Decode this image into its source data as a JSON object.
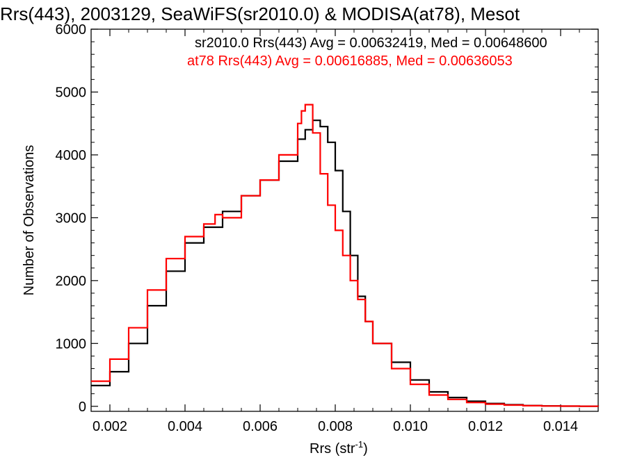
{
  "chart_data": {
    "type": "line",
    "title": "Rrs(443), 2003129, SeaWiFS(sr2010.0) & MODISA(at78), Mesot",
    "xlabel": "Rrs (str",
    "xlabel_sup": "-1",
    "xlabel_end": ")",
    "ylabel": "Number of Observations",
    "xlim": [
      0.0015,
      0.015
    ],
    "ylim": [
      -80,
      6000
    ],
    "xticks": [
      0.002,
      0.004,
      0.006,
      0.008,
      0.01,
      0.012,
      0.014
    ],
    "xtick_labels": [
      "0.002",
      "0.004",
      "0.006",
      "0.008",
      "0.010",
      "0.012",
      "0.014"
    ],
    "yticks": [
      0,
      1000,
      2000,
      3000,
      4000,
      5000,
      6000
    ],
    "ytick_labels": [
      "0",
      "1000",
      "2000",
      "3000",
      "4000",
      "5000",
      "6000"
    ],
    "grid": false,
    "legend_position": "top-right",
    "series": [
      {
        "name": "sr2010.0 Rrs(443) Avg = 0.00632419, Med = 0.00648600",
        "color": "#000000",
        "step": true,
        "x": [
          0.0015,
          0.002,
          0.0025,
          0.003,
          0.0035,
          0.004,
          0.0045,
          0.005,
          0.0055,
          0.006,
          0.0065,
          0.007,
          0.0072,
          0.0074,
          0.0076,
          0.0078,
          0.008,
          0.0082,
          0.0084,
          0.0086,
          0.0088,
          0.009,
          0.0095,
          0.01,
          0.0105,
          0.011,
          0.0115,
          0.012,
          0.0125,
          0.013,
          0.0135,
          0.014,
          0.0145,
          0.015
        ],
        "y": [
          330,
          550,
          1000,
          1600,
          2150,
          2600,
          2850,
          3100,
          3350,
          3600,
          3900,
          4250,
          4400,
          4550,
          4450,
          4200,
          3750,
          3100,
          2400,
          1750,
          1350,
          1000,
          700,
          420,
          230,
          140,
          80,
          45,
          25,
          12,
          6,
          3,
          1,
          0
        ]
      },
      {
        "name": "at78 Rrs(443) Avg = 0.00616885, Med = 0.00636053",
        "color": "#ff0000",
        "step": true,
        "x": [
          0.0015,
          0.002,
          0.0025,
          0.003,
          0.0035,
          0.004,
          0.0045,
          0.0048,
          0.005,
          0.0055,
          0.006,
          0.0065,
          0.007,
          0.0071,
          0.0072,
          0.0074,
          0.0076,
          0.0078,
          0.008,
          0.0082,
          0.0084,
          0.0086,
          0.0088,
          0.009,
          0.0095,
          0.01,
          0.0105,
          0.011,
          0.0115,
          0.012,
          0.0125,
          0.013,
          0.0135,
          0.014,
          0.0145,
          0.015
        ],
        "y": [
          400,
          750,
          1250,
          1850,
          2350,
          2700,
          2900,
          3050,
          3000,
          3350,
          3600,
          4000,
          4500,
          4700,
          4800,
          4350,
          3700,
          3200,
          2800,
          2400,
          2000,
          1700,
          1350,
          1000,
          600,
          350,
          180,
          110,
          60,
          35,
          20,
          10,
          5,
          3,
          1,
          0
        ]
      }
    ]
  }
}
